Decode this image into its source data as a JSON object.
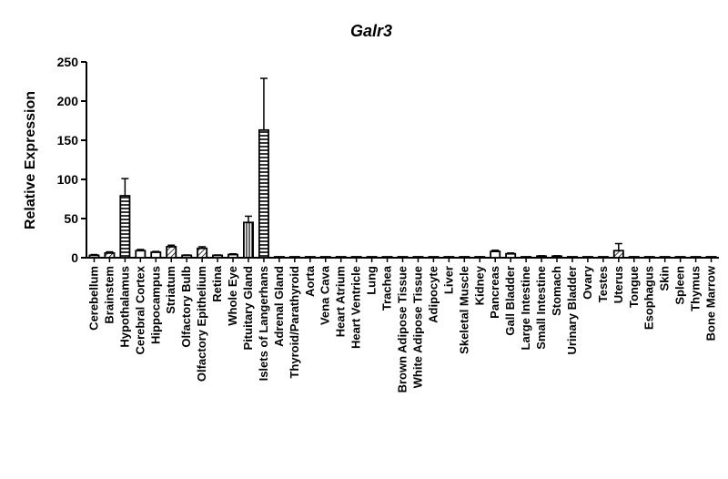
{
  "chart_data": {
    "type": "bar",
    "title": "Galr3",
    "xlabel": "",
    "ylabel": "Relative Expression",
    "ylim": [
      0,
      250
    ],
    "yticks": [
      "0",
      "50",
      "100",
      "150",
      "200",
      "250"
    ],
    "grid": false,
    "legend": "none",
    "bar_color": "#000000",
    "categories": [
      "Cerebellum",
      "Brainstem",
      "Hypothalamus",
      "Cerebral Cortex",
      "Hippocampus",
      "Striatum",
      "Olfactory Bulb",
      "Olfactory Epithelium",
      "Retina",
      "Whole Eye",
      "Pituitary Gland",
      "Islets of Langerhans",
      "Adrenal Gland",
      "Thyroid/Parathyroid",
      "Aorta",
      "Vena Cava",
      "Heart Atrium",
      "Heart Ventricle",
      "Lung",
      "Trachea",
      "Brown Adipose Tissue",
      "White Adipose Tissue",
      "Adipocyte",
      "Liver",
      "Skeletal Muscle",
      "Kidney",
      "Pancreas",
      "Gall Bladder",
      "Large Intestine",
      "Small Intestine",
      "Stomach",
      "Urinary Bladder",
      "Ovary",
      "Testes",
      "Uterus",
      "Tongue",
      "Esophagus",
      "Skin",
      "Spleen",
      "Thymus",
      "Bone Marrow"
    ],
    "values": [
      3,
      6,
      79,
      9,
      7,
      14,
      3,
      12,
      3,
      4,
      45,
      163,
      0.5,
      0.5,
      0.5,
      0.5,
      0.5,
      0.5,
      0.5,
      0.5,
      0.5,
      0.5,
      0.5,
      0.5,
      0.5,
      0.5,
      8,
      5,
      0.5,
      2,
      2,
      0.5,
      0.5,
      0.5,
      9,
      0.5,
      0.5,
      0.5,
      0.5,
      0.5,
      0.5
    ],
    "errors": [
      1,
      1.5,
      22,
      1.5,
      1,
      2,
      0.5,
      2,
      0.5,
      1,
      8,
      66,
      0,
      0,
      0,
      0,
      0,
      0,
      0,
      0,
      0,
      0,
      0,
      0,
      0,
      0,
      1.5,
      1,
      0,
      0.5,
      0.5,
      0,
      0,
      0,
      9,
      0,
      0,
      0,
      0,
      0,
      0
    ]
  }
}
